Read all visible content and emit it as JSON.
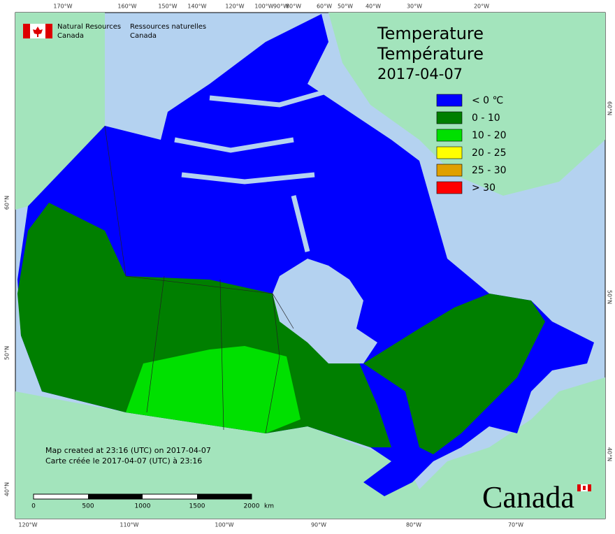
{
  "header": {
    "org_en": [
      "Natural Resources",
      "Canada"
    ],
    "org_fr": [
      "Ressources naturelles",
      "Canada"
    ]
  },
  "title": {
    "en": "Temperature",
    "fr": "Température",
    "date": "2017-04-07"
  },
  "legend": [
    {
      "label": "< 0 ℃",
      "color": "#0000ff"
    },
    {
      "label": "0 - 10",
      "color": "#007f00"
    },
    {
      "label": "10 - 20",
      "color": "#00e000"
    },
    {
      "label": "20 - 25",
      "color": "#ffff00"
    },
    {
      "label": "25 - 30",
      "color": "#e0a000"
    },
    {
      "label": "> 30",
      "color": "#ff0000"
    }
  ],
  "graticule": {
    "top": [
      "170°W",
      "160°W",
      "150°W",
      "140°W",
      "120°W",
      "100°W",
      "90°W",
      "80°W",
      "60°W",
      "50°W",
      "40°W",
      "30°W",
      "20°W"
    ],
    "bottom": [
      "120°W",
      "110°W",
      "100°W",
      "90°W",
      "80°W",
      "70°W"
    ],
    "left": [
      "60°N",
      "50°N",
      "40°N"
    ],
    "right": [
      "60°N",
      "50°N",
      "40°N"
    ]
  },
  "scale_bar": {
    "ticks": [
      "0",
      "500",
      "1000",
      "1500",
      "2000"
    ],
    "unit": "km"
  },
  "notes": [
    "Map created at 23:16 (UTC) on 2017-04-07",
    "Carte créée le 2017-04-07 (UTC) à 23:16"
  ],
  "wordmark": "Canada"
}
